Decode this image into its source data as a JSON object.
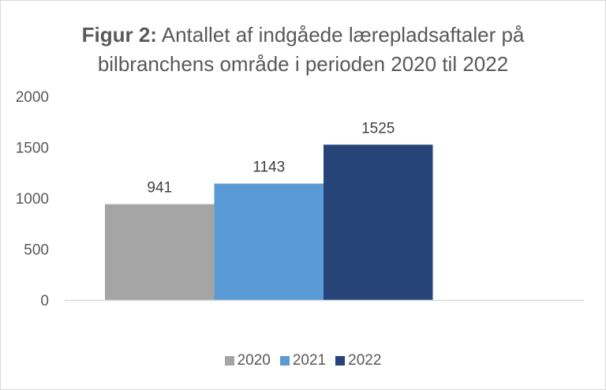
{
  "chart_data": {
    "type": "bar",
    "title_bold": "Figur 2:",
    "title_rest_line1": " Antallet af indgåede lærepladsaftaler på",
    "title_line2": "bilbranchens område i perioden 2020 til 2022",
    "categories": [
      ""
    ],
    "series": [
      {
        "name": "2020",
        "values": [
          941
        ],
        "color": "#a5a5a5"
      },
      {
        "name": "2021",
        "values": [
          1143
        ],
        "color": "#5b9bd5"
      },
      {
        "name": "2022",
        "values": [
          1525
        ],
        "color": "#264478"
      }
    ],
    "data_labels": [
      "941",
      "1143",
      "1525"
    ],
    "yticks": [
      "0",
      "500",
      "1000",
      "1500",
      "2000"
    ],
    "ytick_values": [
      0,
      500,
      1000,
      1500,
      2000
    ],
    "ylim": [
      0,
      2000
    ],
    "xlabel": "",
    "ylabel": "",
    "grid": false,
    "legend": "bottom"
  }
}
